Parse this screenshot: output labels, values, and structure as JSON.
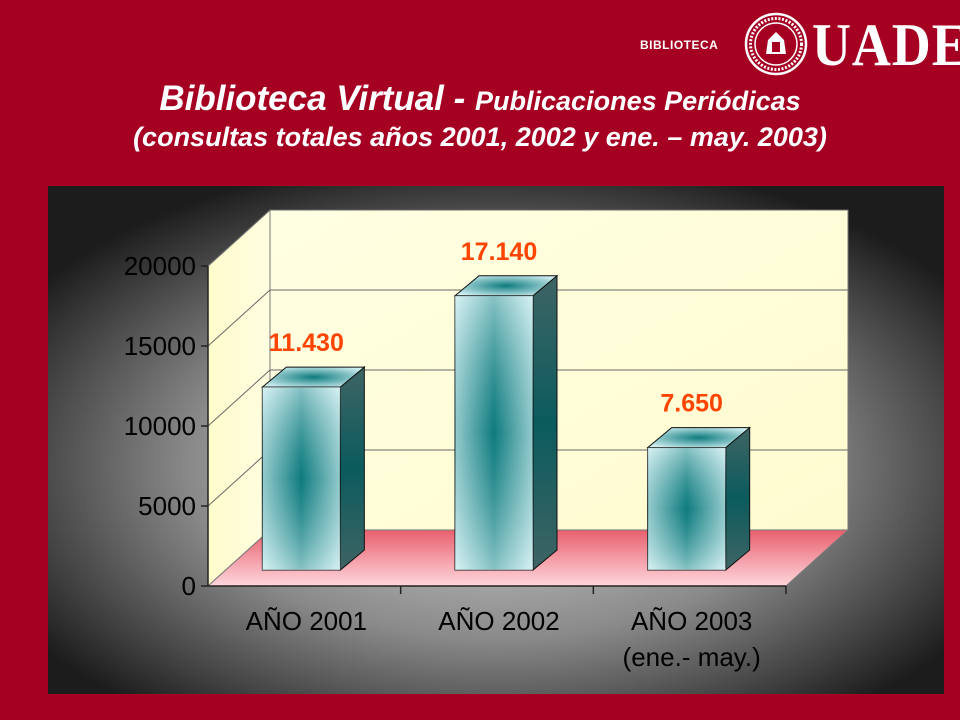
{
  "header": {
    "section_label": "BIBLIOTECA",
    "logo_text": "UADE",
    "seal_text": "UNIVERSIDAD ARGENTINA DE LA EMPRESA"
  },
  "title": {
    "main": "Biblioteca Virtual",
    "separator": " - ",
    "sub": "Publicaciones Periódicas",
    "line2": "(consultas totales años 2001, 2002 y  ene. – may. 2003)"
  },
  "colors": {
    "background": "#a50022",
    "panel": "#2a2a2a",
    "data_label": "#ff4400",
    "bar_face": "#c8e8ec",
    "bar_core": "#0e7b7e",
    "wall": "#ffffd8",
    "floor": "#f07a88"
  },
  "chart_data": {
    "type": "bar",
    "style": "3d-cylinder-columns",
    "categories": [
      "AÑO 2001",
      "AÑO 2002",
      "AÑO 2003"
    ],
    "category_sublabels": [
      "",
      "",
      "(ene.- may.)"
    ],
    "values": [
      11430,
      17140,
      7650
    ],
    "data_labels": [
      "11.430",
      "17.140",
      "7.650"
    ],
    "yticks": [
      0,
      5000,
      10000,
      15000,
      20000
    ],
    "ytick_labels": [
      "0",
      "5000",
      "10000",
      "15000",
      "20000"
    ],
    "ylim": [
      0,
      20000
    ],
    "grid": true,
    "legend": "none"
  }
}
